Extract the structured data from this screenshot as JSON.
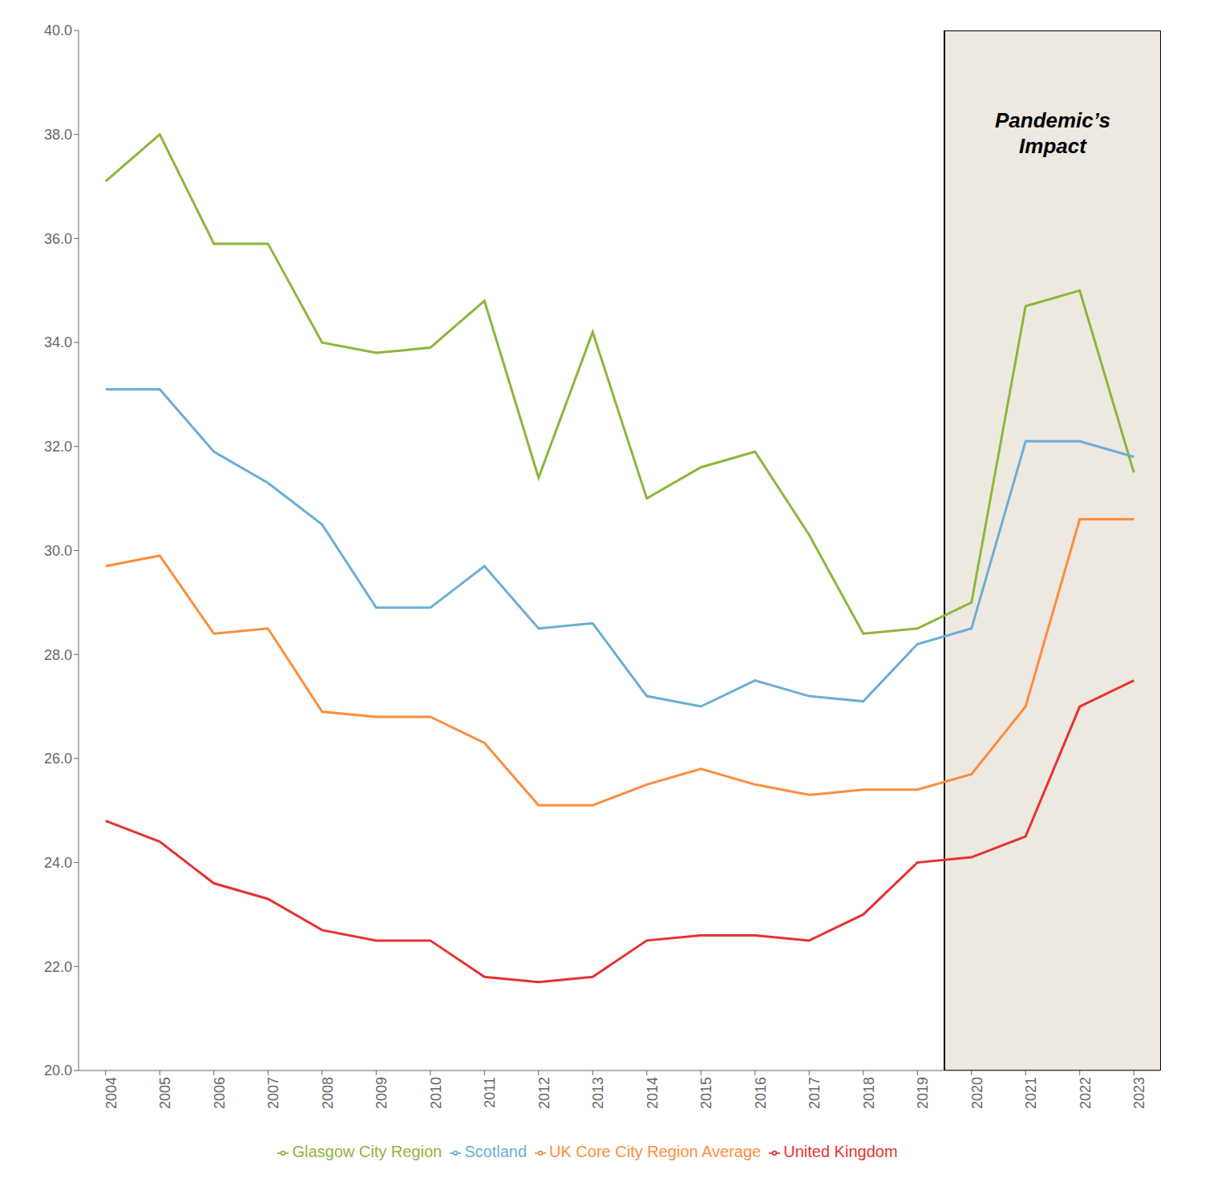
{
  "chart_data": {
    "type": "line",
    "x": [
      2004,
      2005,
      2006,
      2007,
      2008,
      2009,
      2010,
      2011,
      2012,
      2013,
      2014,
      2015,
      2016,
      2017,
      2018,
      2019,
      2020,
      2021,
      2022,
      2023
    ],
    "xlim": [
      2003.5,
      2023.5
    ],
    "xticks": [
      2004,
      2005,
      2006,
      2007,
      2008,
      2009,
      2010,
      2011,
      2012,
      2013,
      2014,
      2015,
      2016,
      2017,
      2018,
      2019,
      2020,
      2021,
      2022,
      2023
    ],
    "ylim": [
      20.0,
      40.0
    ],
    "yticks": [
      {
        "value": 20.0,
        "label": "20.0"
      },
      {
        "value": 22.0,
        "label": "22.0"
      },
      {
        "value": 24.0,
        "label": "24.0"
      },
      {
        "value": 26.0,
        "label": "26.0"
      },
      {
        "value": 28.0,
        "label": "28.0"
      },
      {
        "value": 30.0,
        "label": "30.0"
      },
      {
        "value": 32.0,
        "label": "32.0"
      },
      {
        "value": 34.0,
        "label": "34.0"
      },
      {
        "value": 36.0,
        "label": "36.0"
      },
      {
        "value": 38.0,
        "label": "38.0"
      },
      {
        "value": 40.0,
        "label": "40.0"
      }
    ],
    "series": [
      {
        "name": "Glasgow City Region",
        "color": "#8db63b",
        "values": [
          37.1,
          38.0,
          35.9,
          35.9,
          34.0,
          33.8,
          33.9,
          34.8,
          31.4,
          34.2,
          31.0,
          31.6,
          31.9,
          30.3,
          28.4,
          28.5,
          29.0,
          34.7,
          35.0,
          31.5
        ]
      },
      {
        "name": "Scotland",
        "color": "#6baed6",
        "values": [
          33.1,
          33.1,
          31.9,
          31.3,
          30.5,
          28.9,
          28.9,
          29.7,
          28.5,
          28.6,
          27.2,
          27.0,
          27.5,
          27.2,
          27.1,
          28.2,
          28.5,
          32.1,
          32.1,
          31.8
        ]
      },
      {
        "name": "UK Core City Region Average",
        "color": "#fd8d3c",
        "values": [
          29.7,
          29.9,
          28.4,
          28.5,
          26.9,
          26.8,
          26.8,
          26.3,
          25.1,
          25.1,
          25.5,
          25.8,
          25.5,
          25.3,
          25.4,
          25.4,
          25.7,
          27.0,
          30.6,
          30.6
        ]
      },
      {
        "name": "United Kingdom",
        "color": "#e63232",
        "values": [
          24.8,
          24.4,
          23.6,
          23.3,
          22.7,
          22.5,
          22.5,
          21.8,
          21.7,
          21.8,
          22.5,
          22.6,
          22.6,
          22.5,
          23.0,
          24.0,
          24.1,
          24.5,
          27.0,
          27.5
        ]
      }
    ],
    "shaded_regions": [
      {
        "x0": 2019.5,
        "x1": 2023.5,
        "color": "#ede8e0"
      }
    ],
    "annotations": [
      {
        "text": "Pandemic’s\nImpact",
        "x": 2021.5,
        "y": 38.5
      }
    ],
    "grid": false,
    "legend": "bottom"
  }
}
